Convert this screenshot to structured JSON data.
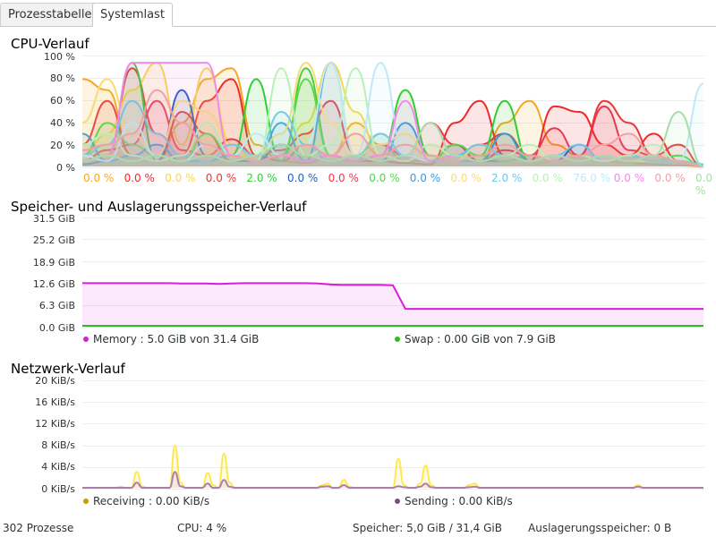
{
  "tabs": [
    {
      "label": "Prozesstabelle",
      "active": false
    },
    {
      "label": "Systemlast",
      "active": true
    }
  ],
  "cpu": {
    "title": "CPU-Verlauf",
    "yticks": [
      "100 %",
      "80 %",
      "60 %",
      "40 %",
      "20 %",
      "0 %"
    ],
    "cores": [
      {
        "value": "0.0 %",
        "color": "#f5a623"
      },
      {
        "value": "0.0 %",
        "color": "#ef2929"
      },
      {
        "value": "0.0 %",
        "color": "#f7d84b"
      },
      {
        "value": "0.0 %",
        "color": "#e8383b"
      },
      {
        "value": "2.0 %",
        "color": "#33cc33"
      },
      {
        "value": "0.0 %",
        "color": "#1f5fbf"
      },
      {
        "value": "0.0 %",
        "color": "#e8384f"
      },
      {
        "value": "0.0 %",
        "color": "#4ad84a"
      },
      {
        "value": "0.0 %",
        "color": "#3a9ad9"
      },
      {
        "value": "0.0 %",
        "color": "#f5dc7a"
      },
      {
        "value": "2.0 %",
        "color": "#6ec6e8"
      },
      {
        "value": "0.0 %",
        "color": "#b9f0b9"
      },
      {
        "value": "76.0 %",
        "color": "#bfe9f7"
      },
      {
        "value": "0.0 %",
        "color": "#f28ae8"
      },
      {
        "value": "0.0 %",
        "color": "#f0a0a8"
      },
      {
        "value": "0.0 %",
        "color": "#a9dca9"
      }
    ]
  },
  "memory": {
    "title": "Speicher- und Auslagerungsspeicher-Verlauf",
    "yticks": [
      "31.5 GiB",
      "25.2 GiB",
      "18.9 GiB",
      "12.6 GiB",
      "6.3 GiB",
      "0.0 GiB"
    ],
    "memory_legend": "Memory : 5.0 GiB von 31.4 GiB",
    "swap_legend": "Swap : 0.00 GiB von 7.9 GiB",
    "memory_color": "#d81ed8",
    "swap_color": "#22c322"
  },
  "network": {
    "title": "Netzwerk-Verlauf",
    "yticks": [
      "20 KiB/s",
      "16 KiB/s",
      "12 KiB/s",
      "8 KiB/s",
      "4 KiB/s",
      "0 KiB/s"
    ],
    "receiving_legend": "Receiving : 0.00 KiB/s",
    "sending_legend": "Sending : 0.00 KiB/s",
    "receiving_color": "#c4a000",
    "sending_color": "#75507b"
  },
  "statusbar": {
    "processes": "302 Prozesse",
    "cpu": "CPU: 4 %",
    "memory": "Speicher: 5,0 GiB / 31,4 GiB",
    "swap": "Auslagerungsspeicher: 0 B"
  },
  "chart_data": [
    {
      "type": "line",
      "title": "CPU-Verlauf",
      "ylim": [
        0,
        100
      ],
      "yticks": [
        "100 %",
        "80 %",
        "60 %",
        "40 %",
        "20 %",
        "0 %"
      ],
      "series": [
        {
          "name": "0.0 %",
          "values": [
            80,
            70,
            10,
            5,
            40,
            80,
            90,
            20,
            5,
            3,
            10,
            40,
            20,
            5,
            5,
            10,
            5,
            40,
            60,
            20,
            10,
            5,
            3,
            2,
            1,
            0
          ]
        },
        {
          "name": "0.0 %",
          "values": [
            5,
            10,
            90,
            30,
            10,
            60,
            80,
            10,
            5,
            20,
            10,
            5,
            5,
            3,
            2,
            40,
            60,
            10,
            5,
            55,
            50,
            20,
            10,
            30,
            5,
            0
          ]
        },
        {
          "name": "0.0 %",
          "values": [
            10,
            30,
            70,
            95,
            20,
            90,
            20,
            5,
            10,
            40,
            95,
            50,
            10,
            5,
            20,
            10,
            5,
            3,
            2,
            5,
            10,
            5,
            3,
            10,
            5,
            0
          ]
        },
        {
          "name": "0.0 %",
          "values": [
            20,
            60,
            10,
            5,
            50,
            30,
            5,
            10,
            20,
            10,
            5,
            10,
            20,
            10,
            5,
            10,
            20,
            30,
            10,
            5,
            10,
            60,
            40,
            10,
            20,
            0
          ]
        },
        {
          "name": "2.0 %",
          "values": [
            5,
            10,
            95,
            5,
            10,
            5,
            10,
            80,
            5,
            90,
            10,
            5,
            10,
            70,
            10,
            5,
            10,
            60,
            5,
            10,
            5,
            10,
            5,
            10,
            5,
            2
          ]
        },
        {
          "name": "0.0 %",
          "values": [
            2,
            5,
            10,
            5,
            70,
            10,
            5,
            5,
            20,
            10,
            5,
            10,
            5,
            10,
            5,
            20,
            5,
            5,
            10,
            5,
            20,
            5,
            10,
            5,
            5,
            0
          ]
        },
        {
          "name": "0.0 %",
          "values": [
            5,
            15,
            20,
            60,
            15,
            10,
            25,
            10,
            15,
            30,
            60,
            10,
            20,
            10,
            40,
            20,
            5,
            15,
            10,
            35,
            10,
            55,
            15,
            10,
            5,
            0
          ]
        },
        {
          "name": "0.0 %",
          "values": [
            10,
            40,
            20,
            10,
            5,
            30,
            10,
            5,
            10,
            80,
            10,
            5,
            30,
            10,
            5,
            20,
            10,
            5,
            10,
            5,
            10,
            5,
            10,
            5,
            10,
            0
          ]
        },
        {
          "name": "0.0 %",
          "values": [
            30,
            5,
            10,
            20,
            5,
            5,
            10,
            5,
            40,
            5,
            95,
            10,
            5,
            40,
            10,
            5,
            5,
            30,
            5,
            10,
            5,
            10,
            5,
            10,
            5,
            0
          ]
        },
        {
          "name": "0.0 %",
          "values": [
            40,
            80,
            30,
            10,
            60,
            50,
            20,
            10,
            30,
            95,
            40,
            10,
            20,
            30,
            10,
            5,
            20,
            10,
            5,
            10,
            5,
            10,
            5,
            5,
            5,
            0
          ]
        },
        {
          "name": "2.0 %",
          "values": [
            10,
            20,
            60,
            30,
            10,
            5,
            20,
            10,
            50,
            20,
            5,
            10,
            30,
            10,
            5,
            10,
            20,
            10,
            5,
            10,
            20,
            5,
            10,
            5,
            5,
            2
          ]
        },
        {
          "name": "0.0 %",
          "values": [
            20,
            30,
            10,
            5,
            10,
            40,
            10,
            5,
            90,
            10,
            20,
            90,
            10,
            5,
            20,
            10,
            5,
            10,
            20,
            5,
            10,
            5,
            10,
            20,
            5,
            0
          ]
        },
        {
          "name": "76.0 %",
          "values": [
            10,
            5,
            40,
            10,
            5,
            20,
            10,
            30,
            10,
            20,
            95,
            10,
            95,
            10,
            5,
            10,
            5,
            10,
            5,
            10,
            5,
            10,
            5,
            10,
            5,
            76
          ]
        },
        {
          "name": "0.0 %",
          "values": [
            5,
            10,
            95,
            95,
            95,
            95,
            10,
            5,
            10,
            5,
            10,
            5,
            10,
            60,
            5,
            10,
            5,
            10,
            5,
            10,
            5,
            10,
            5,
            10,
            5,
            0
          ]
        },
        {
          "name": "0.0 %",
          "values": [
            15,
            20,
            30,
            70,
            40,
            20,
            10,
            5,
            10,
            20,
            10,
            30,
            10,
            20,
            10,
            5,
            10,
            20,
            10,
            5,
            10,
            20,
            30,
            10,
            5,
            0
          ]
        },
        {
          "name": "0.0 %",
          "values": [
            5,
            10,
            5,
            10,
            5,
            10,
            5,
            10,
            20,
            10,
            5,
            10,
            5,
            10,
            40,
            10,
            5,
            10,
            5,
            10,
            5,
            10,
            5,
            10,
            50,
            0
          ]
        }
      ]
    },
    {
      "type": "area",
      "title": "Speicher- und Auslagerungsspeicher-Verlauf",
      "ylim": [
        0,
        31.5
      ],
      "yticks": [
        "31.5 GiB",
        "25.2 GiB",
        "18.9 GiB",
        "12.6 GiB",
        "6.3 GiB",
        "0.0 GiB"
      ],
      "series": [
        {
          "name": "Memory",
          "unit": "GiB",
          "values": [
            12.6,
            12.6,
            12.6,
            12.6,
            12.6,
            12.6,
            12.6,
            12.6,
            12.5,
            12.5,
            12.5,
            12.4,
            12.5,
            12.6,
            12.6,
            12.6,
            12.6,
            12.6,
            12.6,
            12.5,
            12.2,
            12.1,
            12.1,
            12.1,
            12.1,
            12.0,
            5.0,
            5.0,
            5.0,
            5.0,
            5.0,
            5.0,
            5.0,
            5.0,
            5.0,
            5.0,
            5.0,
            5.0,
            5.0,
            5.0,
            5.0,
            5.0,
            5.0,
            5.0,
            5.0,
            5.0,
            5.0,
            5.0,
            5.0,
            5.0,
            5.0
          ]
        },
        {
          "name": "Swap",
          "unit": "GiB",
          "values": [
            0,
            0,
            0,
            0,
            0,
            0,
            0,
            0,
            0,
            0,
            0,
            0,
            0,
            0,
            0,
            0,
            0,
            0,
            0,
            0,
            0,
            0,
            0,
            0,
            0,
            0,
            0,
            0,
            0,
            0,
            0,
            0,
            0,
            0,
            0,
            0,
            0,
            0,
            0,
            0,
            0,
            0,
            0,
            0,
            0,
            0,
            0,
            0,
            0,
            0,
            0
          ]
        }
      ]
    },
    {
      "type": "line",
      "title": "Netzwerk-Verlauf",
      "ylim": [
        0,
        20
      ],
      "yticks": [
        "20 KiB/s",
        "16 KiB/s",
        "12 KiB/s",
        "8 KiB/s",
        "4 KiB/s",
        "0 KiB/s"
      ],
      "series": [
        {
          "name": "Receiving",
          "unit": "KiB/s",
          "values": [
            0,
            0,
            0,
            0,
            0,
            0,
            0,
            0.2,
            0,
            0,
            3.0,
            0.2,
            0,
            0,
            0,
            0,
            0,
            8.0,
            1.0,
            0,
            0,
            0,
            0,
            2.8,
            0.5,
            0,
            6.5,
            1.0,
            0,
            0,
            0,
            0,
            0,
            0,
            0,
            0,
            0,
            0,
            0,
            0,
            0,
            0,
            0,
            0,
            0.5,
            0.8,
            0,
            0,
            1.5,
            0.2,
            0,
            0,
            0,
            0,
            0,
            0,
            0,
            0,
            5.5,
            0.5,
            0,
            0,
            0.8,
            4.2,
            0.5,
            0,
            0,
            0,
            0,
            0,
            0,
            0.5,
            0.8,
            0,
            0,
            0,
            0,
            0,
            0,
            0,
            0,
            0,
            0,
            0,
            0,
            0,
            0,
            0,
            0,
            0,
            0,
            0,
            0,
            0,
            0,
            0,
            0,
            0,
            0,
            0,
            0,
            0,
            0.5,
            0,
            0,
            0,
            0,
            0,
            0,
            0,
            0,
            0,
            0,
            0,
            0
          ]
        },
        {
          "name": "Sending",
          "unit": "KiB/s",
          "values": [
            0,
            0,
            0,
            0,
            0,
            0,
            0,
            0,
            0,
            0,
            1.0,
            0,
            0,
            0,
            0,
            0,
            0,
            3.0,
            0.3,
            0,
            0,
            0,
            0,
            0.8,
            0,
            0,
            1.5,
            0.2,
            0,
            0,
            0,
            0,
            0,
            0,
            0,
            0,
            0,
            0,
            0,
            0,
            0,
            0,
            0,
            0,
            0.2,
            0.3,
            0,
            0,
            0.5,
            0,
            0,
            0,
            0,
            0,
            0,
            0,
            0,
            0,
            0.3,
            0.1,
            0,
            0,
            0.2,
            0.8,
            0.1,
            0,
            0,
            0,
            0,
            0,
            0,
            0.1,
            0.2,
            0,
            0,
            0,
            0,
            0,
            0,
            0,
            0,
            0,
            0,
            0,
            0,
            0,
            0,
            0,
            0,
            0,
            0,
            0,
            0,
            0,
            0,
            0,
            0,
            0,
            0,
            0,
            0,
            0,
            0.2,
            0,
            0,
            0,
            0,
            0,
            0,
            0,
            0,
            0,
            0,
            0,
            0
          ]
        }
      ]
    }
  ]
}
